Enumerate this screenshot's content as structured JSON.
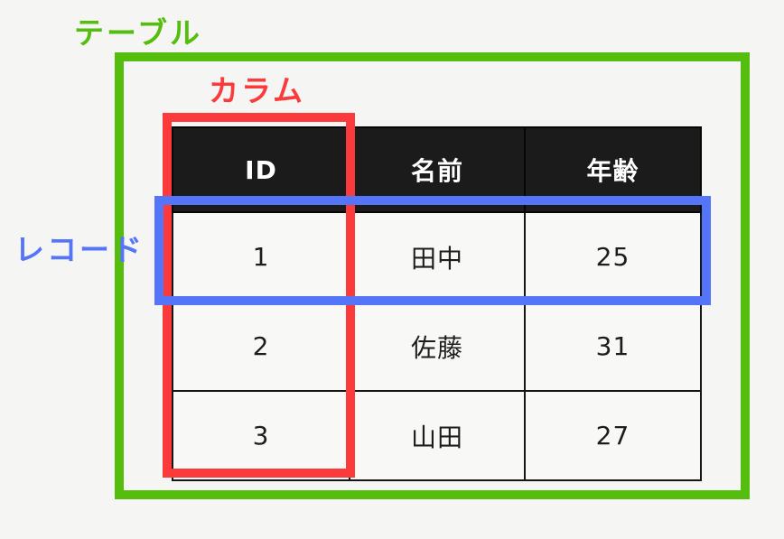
{
  "canvas": {
    "background": "#f5f5f4"
  },
  "annotations": {
    "table": {
      "label": "テーブル",
      "color": "#55bd0d"
    },
    "column": {
      "label": "カラム",
      "color": "#fb3b3b"
    },
    "record": {
      "label": "レコード",
      "color": "#5575f8"
    }
  },
  "table": {
    "header_bg": "#1b1b1b",
    "header_text_color": "#ffffff",
    "columns": [
      "ID",
      "名前",
      "年齢"
    ],
    "rows": [
      {
        "id": "1",
        "name": "田中",
        "age": "25"
      },
      {
        "id": "2",
        "name": "佐藤",
        "age": "31"
      },
      {
        "id": "3",
        "name": "山田",
        "age": "27"
      }
    ]
  }
}
